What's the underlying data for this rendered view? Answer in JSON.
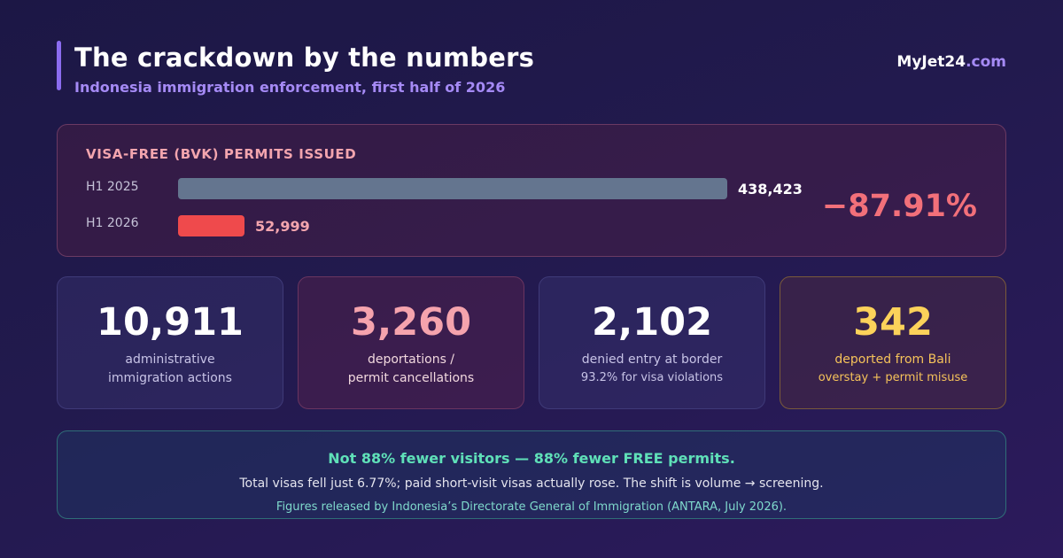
{
  "header": {
    "title": "The crackdown by the numbers",
    "subtitle": "Indonesia immigration enforcement, first half of 2026",
    "brand_main": "MyJet24",
    "brand_tld": ".com"
  },
  "visa_card": {
    "label": "VISA-FREE (BVK) PERMITS ISSUED",
    "change": "−87.91%",
    "rows": [
      {
        "period": "H1 2025",
        "value": 438423,
        "value_text": "438,423",
        "color": "#64758f",
        "label_color": "#ffffff"
      },
      {
        "period": "H1 2026",
        "value": 52999,
        "value_text": "52,999",
        "color": "#ef4a4c",
        "label_color": "#f3a5ae"
      }
    ]
  },
  "stats": [
    {
      "number": "10,911",
      "line1": "administrative",
      "line2": "immigration actions",
      "number_color": "#ffffff",
      "text_color": "#c7c3e6"
    },
    {
      "number": "3,260",
      "line1": "deportations /",
      "line2": "permit cancellations",
      "number_color": "#f5a3ad",
      "text_color": "#f1d8de"
    },
    {
      "number": "2,102",
      "line1": "denied entry at border",
      "line2": "93.2% for visa violations",
      "number_color": "#ffffff",
      "text_color": "#c7c3e6"
    },
    {
      "number": "342",
      "line1": "deported from Bali",
      "line2": "overstay + permit misuse",
      "number_color": "#fcd25a",
      "text_color": "#f6c35a"
    }
  ],
  "note": {
    "headline": "Not 88% fewer visitors — 88% fewer FREE permits.",
    "body": "Total visas fell just 6.77%; paid short-visit visas actually rose. The shift is volume → screening.",
    "source": "Figures released by Indonesia’s Directorate General of Immigration (ANTARA, July 2026)."
  }
}
